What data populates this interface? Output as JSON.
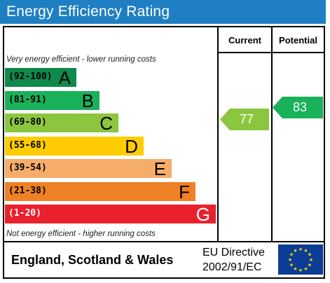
{
  "title": "Energy Efficiency Rating",
  "columns": {
    "current": "Current",
    "potential": "Potential"
  },
  "notes": {
    "top": "Very energy efficient - lower running costs",
    "bottom": "Not energy efficient - higher running costs"
  },
  "bands": [
    {
      "range": "(92-100)",
      "letter": "A",
      "color": "#0f8a4c"
    },
    {
      "range": "(81-91)",
      "letter": "B",
      "color": "#19b159"
    },
    {
      "range": "(69-80)",
      "letter": "C",
      "color": "#8cc63f"
    },
    {
      "range": "(55-68)",
      "letter": "D",
      "color": "#ffcc00"
    },
    {
      "range": "(39-54)",
      "letter": "E",
      "color": "#f7ad6a"
    },
    {
      "range": "(21-38)",
      "letter": "F",
      "color": "#ef8024"
    },
    {
      "range": "(1-20)",
      "letter": "G",
      "color": "#e9212d"
    }
  ],
  "current": {
    "value": "77",
    "band": "C",
    "color": "#8cc63f"
  },
  "potential": {
    "value": "83",
    "band": "B",
    "color": "#19b159"
  },
  "footer": {
    "country": "England, Scotland & Wales",
    "directive_line1": "EU Directive",
    "directive_line2": "2002/91/EC"
  },
  "colors": {
    "title_bar": "#1f7fc3",
    "eu_flag": "#0b3c96",
    "eu_stars": "#ffdd00"
  }
}
